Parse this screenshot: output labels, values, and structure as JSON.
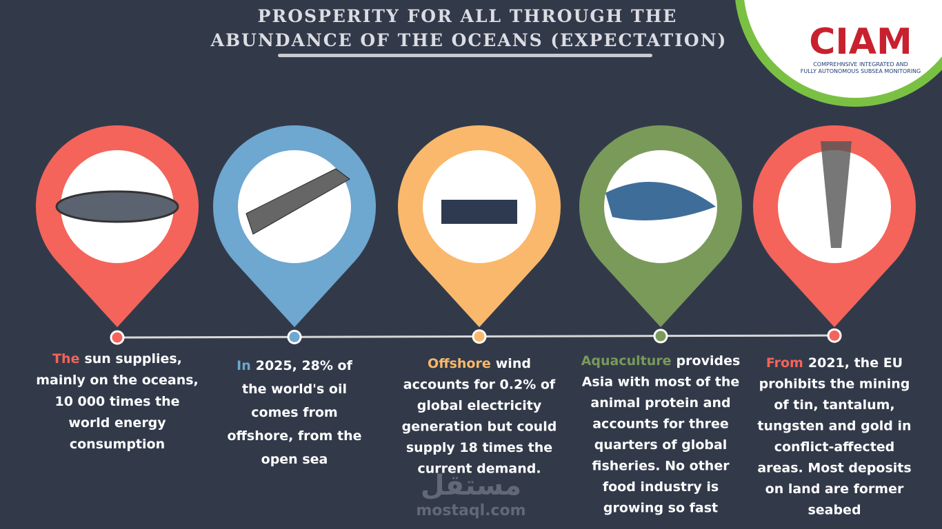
{
  "header": {
    "title_lines": [
      "PROSPERITY FOR ALL THROUGH THE",
      "ABUNDANCE OF THE OCEANS (EXPECTATION)"
    ]
  },
  "logo": {
    "name": "CIAM",
    "lines": [
      "COMPREHNSIVE INTEGRATED AND",
      "FULLY AUTONOMOUS SUBSEA MONITORING"
    ]
  },
  "items": [
    {
      "highlight": "The",
      "lines": [
        "sun supplies,",
        "mainly on the oceans,",
        "10 000 times the",
        "world energy",
        "consumption"
      ]
    },
    {
      "highlight": "In",
      "lines": [
        "2025, 28% of",
        "the world's oil",
        "comes from",
        "offshore, from the",
        "open sea"
      ]
    },
    {
      "highlight": "Offshore",
      "lines": [
        "wind",
        "accounts for 0.2% of",
        "global electricity",
        "generation but could",
        "supply 18 times the",
        "current demand."
      ]
    },
    {
      "highlight": "Aquaculture",
      "lines": [
        "provides",
        "Asia with most of the",
        "animal protein and",
        "accounts for three",
        "quarters of global",
        "fisheries. No other",
        "food industry is",
        "growing so fast"
      ]
    },
    {
      "highlight": "From",
      "lines": [
        "2021, the EU",
        "prohibits the mining",
        "of tin, tantalum,",
        "tungsten and gold in",
        "conflict-affected",
        "areas. Most deposits",
        "on land are former",
        "seabed"
      ]
    }
  ],
  "watermark": {
    "arabic": "مستقل",
    "site": "mostaql.com"
  }
}
